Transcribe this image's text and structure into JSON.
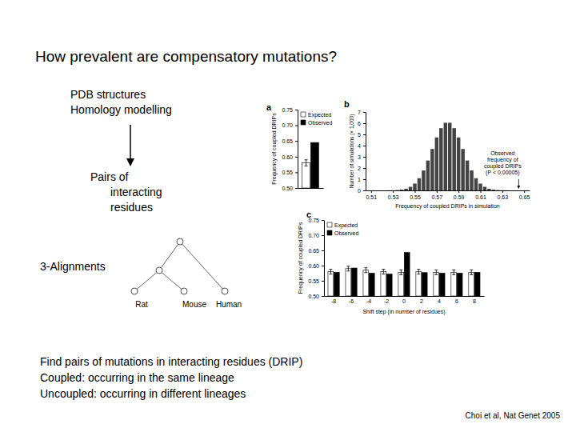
{
  "slide": {
    "title": "How prevalent are compensatory mutations?",
    "pipeline": {
      "sources": [
        "PDB structures",
        "Homology modelling"
      ],
      "result": [
        "Pairs of",
        "interacting",
        "residues"
      ]
    },
    "tree": {
      "label": "3-Alignments",
      "leaves": [
        "Rat",
        "Mouse",
        "Human"
      ]
    },
    "notes": [
      "Find pairs of mutations in interacting residues (DRIP)",
      "Coupled: occurring in the same lineage",
      "Uncoupled: occurring in different lineages"
    ],
    "citation": "Choi et al, Nat Genet 2005"
  },
  "chart_data": [
    {
      "panel": "a",
      "type": "bar",
      "y_label": "Frequency of coupled DRIPs",
      "categories": [
        null
      ],
      "series": [
        {
          "name": "Expected",
          "color": "#ffffff",
          "values": [
            0.58
          ],
          "errors": [
            0.01
          ]
        },
        {
          "name": "Observed",
          "color": "#000000",
          "values": [
            0.645
          ]
        }
      ],
      "ylim": [
        0.5,
        0.75
      ],
      "yticks": [
        {
          "value": 0.5,
          "label": "0.50"
        },
        0.55,
        {
          "value": 0.6,
          "label": "0.60"
        },
        0.65,
        {
          "value": 0.7,
          "label": "0.70"
        },
        0.75
      ],
      "legend": "top-left",
      "tick_labels": "y"
    },
    {
      "panel": "b",
      "type": "histogram",
      "x_label": "Frequency of coupled DRIPs in simulation",
      "y_label": "Number of simulations (× 1,000)",
      "bins": [
        0.524,
        0.528,
        0.532,
        0.536,
        0.54,
        0.544,
        0.548,
        0.552,
        0.556,
        0.56,
        0.564,
        0.568,
        0.572,
        0.576,
        0.58,
        0.584,
        0.588,
        0.592,
        0.596,
        0.6,
        0.604,
        0.608,
        0.612,
        0.616,
        0.62,
        0.624,
        0.628,
        0.632,
        0.636
      ],
      "values": [
        0.01,
        0.01,
        0.03,
        0.07,
        0.15,
        0.32,
        0.61,
        1.09,
        1.78,
        2.67,
        3.7,
        4.73,
        5.56,
        6.04,
        6.04,
        5.56,
        4.73,
        3.7,
        2.67,
        1.78,
        1.09,
        0.61,
        0.32,
        0.15,
        0.07,
        0.03,
        0.01,
        0.01
      ],
      "color": "#444444",
      "xlim": [
        0.505,
        0.655
      ],
      "xticks": [
        0.51,
        0.53,
        0.55,
        0.57,
        0.59,
        0.61,
        0.63,
        0.65
      ],
      "ylim": [
        0,
        7
      ],
      "yticks": [
        0,
        1,
        2,
        3,
        4,
        5,
        6,
        7
      ],
      "annotation": {
        "text": [
          "Observed",
          "frequency of",
          "coupled DRIPs",
          "(P < 0.00005)"
        ],
        "x": 0.645
      }
    },
    {
      "panel": "c",
      "type": "bar",
      "x_label": "Shift step (in number of residues)",
      "y_label": "Frequency of coupled DRIPs",
      "categories": [
        "-8",
        "-6",
        "-4",
        "-2",
        "0",
        "2",
        "4",
        "6",
        "8"
      ],
      "series": [
        {
          "name": "Expected",
          "color": "#ffffff",
          "values": [
            0.58,
            0.59,
            0.585,
            0.58,
            0.578,
            0.58,
            0.578,
            0.578,
            0.578
          ],
          "errors": [
            0.008,
            0.008,
            0.008,
            0.008,
            0.008,
            0.008,
            0.008,
            0.008,
            0.008
          ]
        },
        {
          "name": "Observed",
          "color": "#000000",
          "values": [
            0.578,
            0.592,
            0.575,
            0.572,
            0.643,
            0.577,
            0.575,
            0.575,
            0.578
          ]
        }
      ],
      "ylim": [
        0.5,
        0.75
      ],
      "yticks": [
        {
          "value": 0.5,
          "label": "0.50"
        },
        0.55,
        {
          "value": 0.6,
          "label": "0.60"
        },
        0.65,
        {
          "value": 0.7,
          "label": "0.70"
        },
        0.75
      ],
      "legend": "top-left"
    }
  ]
}
